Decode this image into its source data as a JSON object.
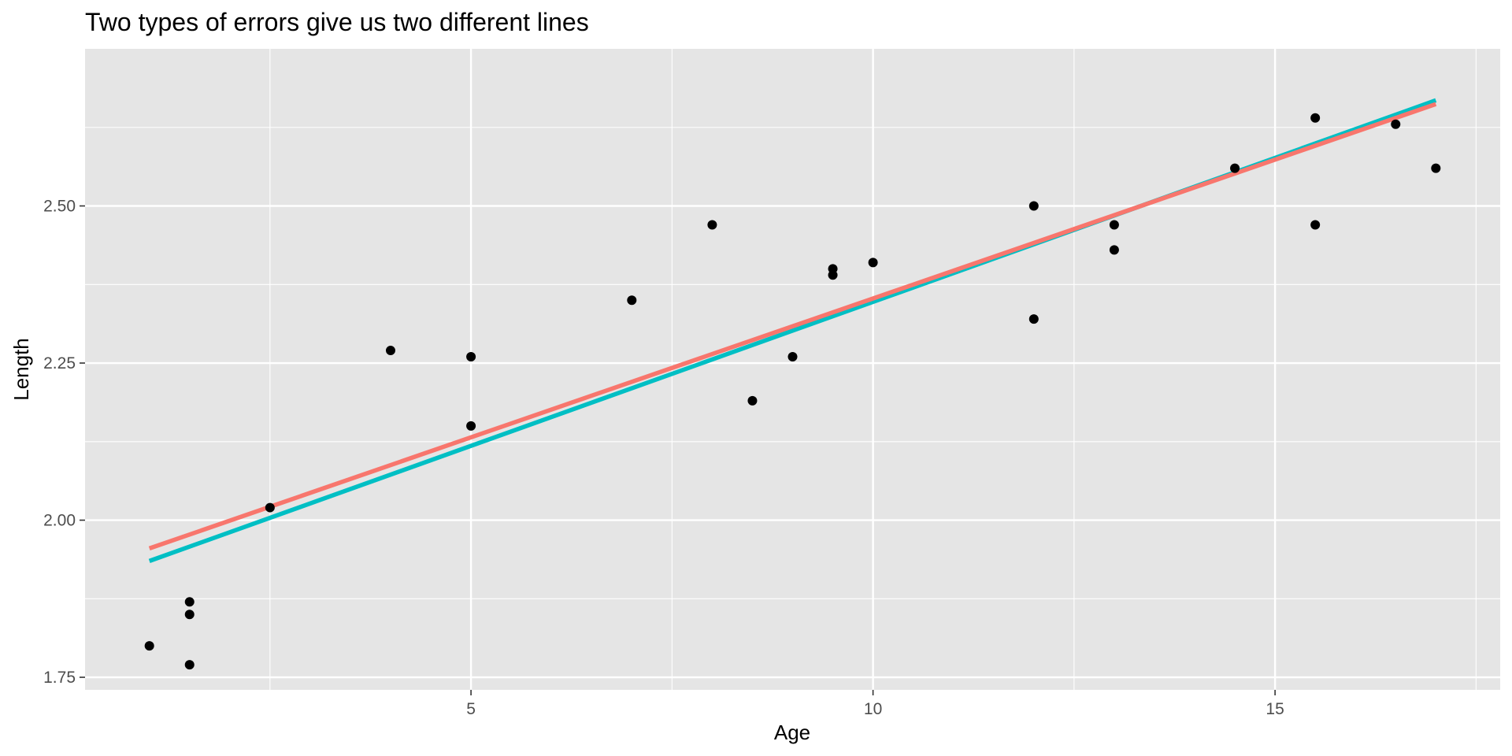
{
  "chart_data": {
    "type": "scatter",
    "title": "Two types of errors give us two different lines",
    "xlabel": "Age",
    "ylabel": "Length",
    "xlim": [
      0.2,
      17.8
    ],
    "ylim": [
      1.73,
      2.75
    ],
    "x_major_ticks": [
      5,
      10,
      15
    ],
    "x_minor_ticks": [
      2.5,
      7.5,
      12.5,
      17.5
    ],
    "y_major_ticks": [
      1.75,
      2.0,
      2.25,
      2.5
    ],
    "y_minor_ticks": [
      1.875,
      2.125,
      2.375,
      2.625
    ],
    "x_tick_labels": [
      "5",
      "10",
      "15"
    ],
    "y_tick_labels": [
      "1.75",
      "2.00",
      "2.25",
      "2.50"
    ],
    "grid": true,
    "legend": "none",
    "colors": {
      "panel": "#e5e5e5",
      "grid": "#ffffff",
      "points": "#000000",
      "line_red": "#f8766d",
      "line_teal": "#00bfc4"
    },
    "points": [
      {
        "x": 1.0,
        "y": 1.8
      },
      {
        "x": 1.5,
        "y": 1.87
      },
      {
        "x": 1.5,
        "y": 1.85
      },
      {
        "x": 1.5,
        "y": 1.77
      },
      {
        "x": 2.5,
        "y": 2.02
      },
      {
        "x": 4.0,
        "y": 2.27
      },
      {
        "x": 5.0,
        "y": 2.26
      },
      {
        "x": 5.0,
        "y": 2.15
      },
      {
        "x": 7.0,
        "y": 2.35
      },
      {
        "x": 8.0,
        "y": 2.47
      },
      {
        "x": 8.5,
        "y": 2.19
      },
      {
        "x": 9.0,
        "y": 2.26
      },
      {
        "x": 9.5,
        "y": 2.4
      },
      {
        "x": 9.5,
        "y": 2.39
      },
      {
        "x": 10.0,
        "y": 2.41
      },
      {
        "x": 12.0,
        "y": 2.5
      },
      {
        "x": 12.0,
        "y": 2.32
      },
      {
        "x": 13.0,
        "y": 2.47
      },
      {
        "x": 13.0,
        "y": 2.43
      },
      {
        "x": 14.5,
        "y": 2.56
      },
      {
        "x": 15.5,
        "y": 2.47
      },
      {
        "x": 15.5,
        "y": 2.64
      },
      {
        "x": 16.5,
        "y": 2.63
      },
      {
        "x": 17.0,
        "y": 2.56
      }
    ],
    "series": [
      {
        "color": "#00bfc4",
        "x": [
          1.0,
          17.0
        ],
        "y": [
          1.935,
          2.668
        ]
      },
      {
        "color": "#f8766d",
        "x": [
          1.0,
          17.0
        ],
        "y": [
          1.955,
          2.662
        ]
      }
    ]
  }
}
